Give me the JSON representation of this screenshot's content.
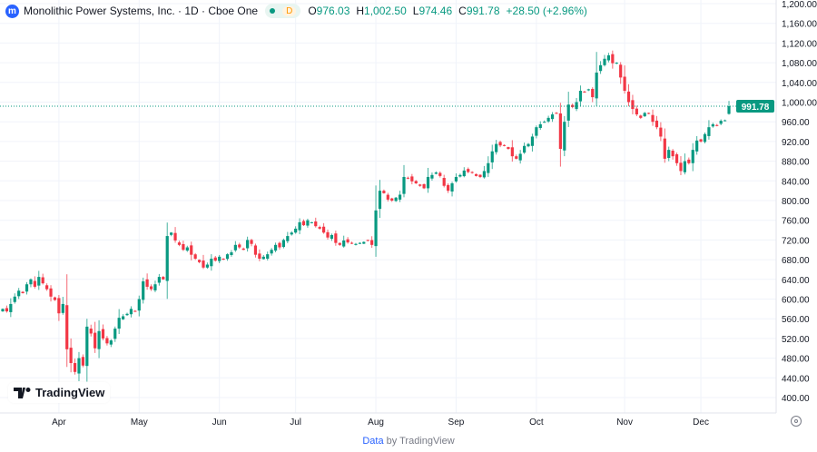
{
  "header": {
    "symbol_name": "Monolithic Power Systems, Inc. · 1D · Cboe One",
    "logo_letter": "m",
    "interval_chip": "D",
    "open_label": "O",
    "open": "976.03",
    "high_label": "H",
    "high": "1,002.50",
    "low_label": "L",
    "low": "974.46",
    "close_label": "C",
    "close": "991.78",
    "change": "+28.50 (+2.96%)"
  },
  "branding": {
    "name": "TradingView"
  },
  "footer": {
    "link": "Data",
    "text": " by TradingView"
  },
  "colors": {
    "up": "#089981",
    "down": "#f23645",
    "grid": "#f0f3fa",
    "last_price": "#089981"
  },
  "chart_data": {
    "type": "candlestick",
    "title": "",
    "ylim": [
      400,
      1200
    ],
    "y_ticks": [
      "1,200.00",
      "1,160.00",
      "1,120.00",
      "1,080.00",
      "1,040.00",
      "1,000.00",
      "960.00",
      "920.00",
      "880.00",
      "840.00",
      "800.00",
      "760.00",
      "720.00",
      "680.00",
      "640.00",
      "600.00",
      "560.00",
      "520.00",
      "480.00",
      "440.00",
      "400.00"
    ],
    "y_tick_values": [
      1200,
      1160,
      1120,
      1080,
      1040,
      1000,
      960,
      920,
      880,
      840,
      800,
      760,
      720,
      680,
      640,
      600,
      560,
      520,
      480,
      440,
      400
    ],
    "x_ticks": [
      {
        "label": "Apr",
        "index": 14
      },
      {
        "label": "May",
        "index": 34
      },
      {
        "label": "Jun",
        "index": 54
      },
      {
        "label": "Jul",
        "index": 73
      },
      {
        "label": "Aug",
        "index": 93
      },
      {
        "label": "Sep",
        "index": 113
      },
      {
        "label": "Oct",
        "index": 133
      },
      {
        "label": "Nov",
        "index": 155
      },
      {
        "label": "Dec",
        "index": 174
      }
    ],
    "last_price": 991.78,
    "last_price_label": "991.78",
    "grid": true,
    "close": [
      580,
      575,
      590,
      605,
      617,
      612,
      630,
      640,
      625,
      645,
      632,
      620,
      605,
      598,
      571,
      590,
      498,
      470,
      452,
      480,
      465,
      544,
      530,
      500,
      535,
      520,
      510,
      516,
      540,
      562,
      565,
      570,
      580,
      575,
      600,
      636,
      625,
      620,
      630,
      645,
      640,
      728,
      735,
      719,
      710,
      700,
      705,
      690,
      682,
      675,
      664,
      670,
      682,
      678,
      686,
      680,
      691,
      695,
      710,
      705,
      700,
      720,
      712,
      690,
      682,
      686,
      691,
      700,
      710,
      705,
      720,
      728,
      735,
      743,
      756,
      750,
      760,
      756,
      748,
      743,
      735,
      725,
      730,
      714,
      710,
      719,
      715,
      714,
      712,
      714,
      716,
      719,
      710,
      780,
      820,
      815,
      802,
      800,
      806,
      812,
      848,
      845,
      839,
      835,
      830,
      825,
      848,
      852,
      857,
      850,
      830,
      820,
      835,
      848,
      852,
      861,
      858,
      857,
      850,
      848,
      860,
      876,
      900,
      915,
      912,
      911,
      905,
      890,
      885,
      895,
      911,
      915,
      930,
      949,
      955,
      960,
      968,
      975,
      977,
      905,
      960,
      995,
      990,
      1000,
      1023,
      1020,
      1026,
      1010,
      1060,
      1075,
      1088,
      1095,
      1079,
      1080,
      1050,
      1023,
      1000,
      986,
      975,
      968,
      978,
      977,
      960,
      949,
      930,
      885,
      903,
      890,
      876,
      860,
      880,
      876,
      903,
      922,
      920,
      935,
      949,
      955,
      952,
      962,
      963,
      991.78
    ],
    "last_candle": {
      "open": 976.03,
      "high": 1002.5,
      "low": 974.46,
      "close": 991.78
    }
  }
}
